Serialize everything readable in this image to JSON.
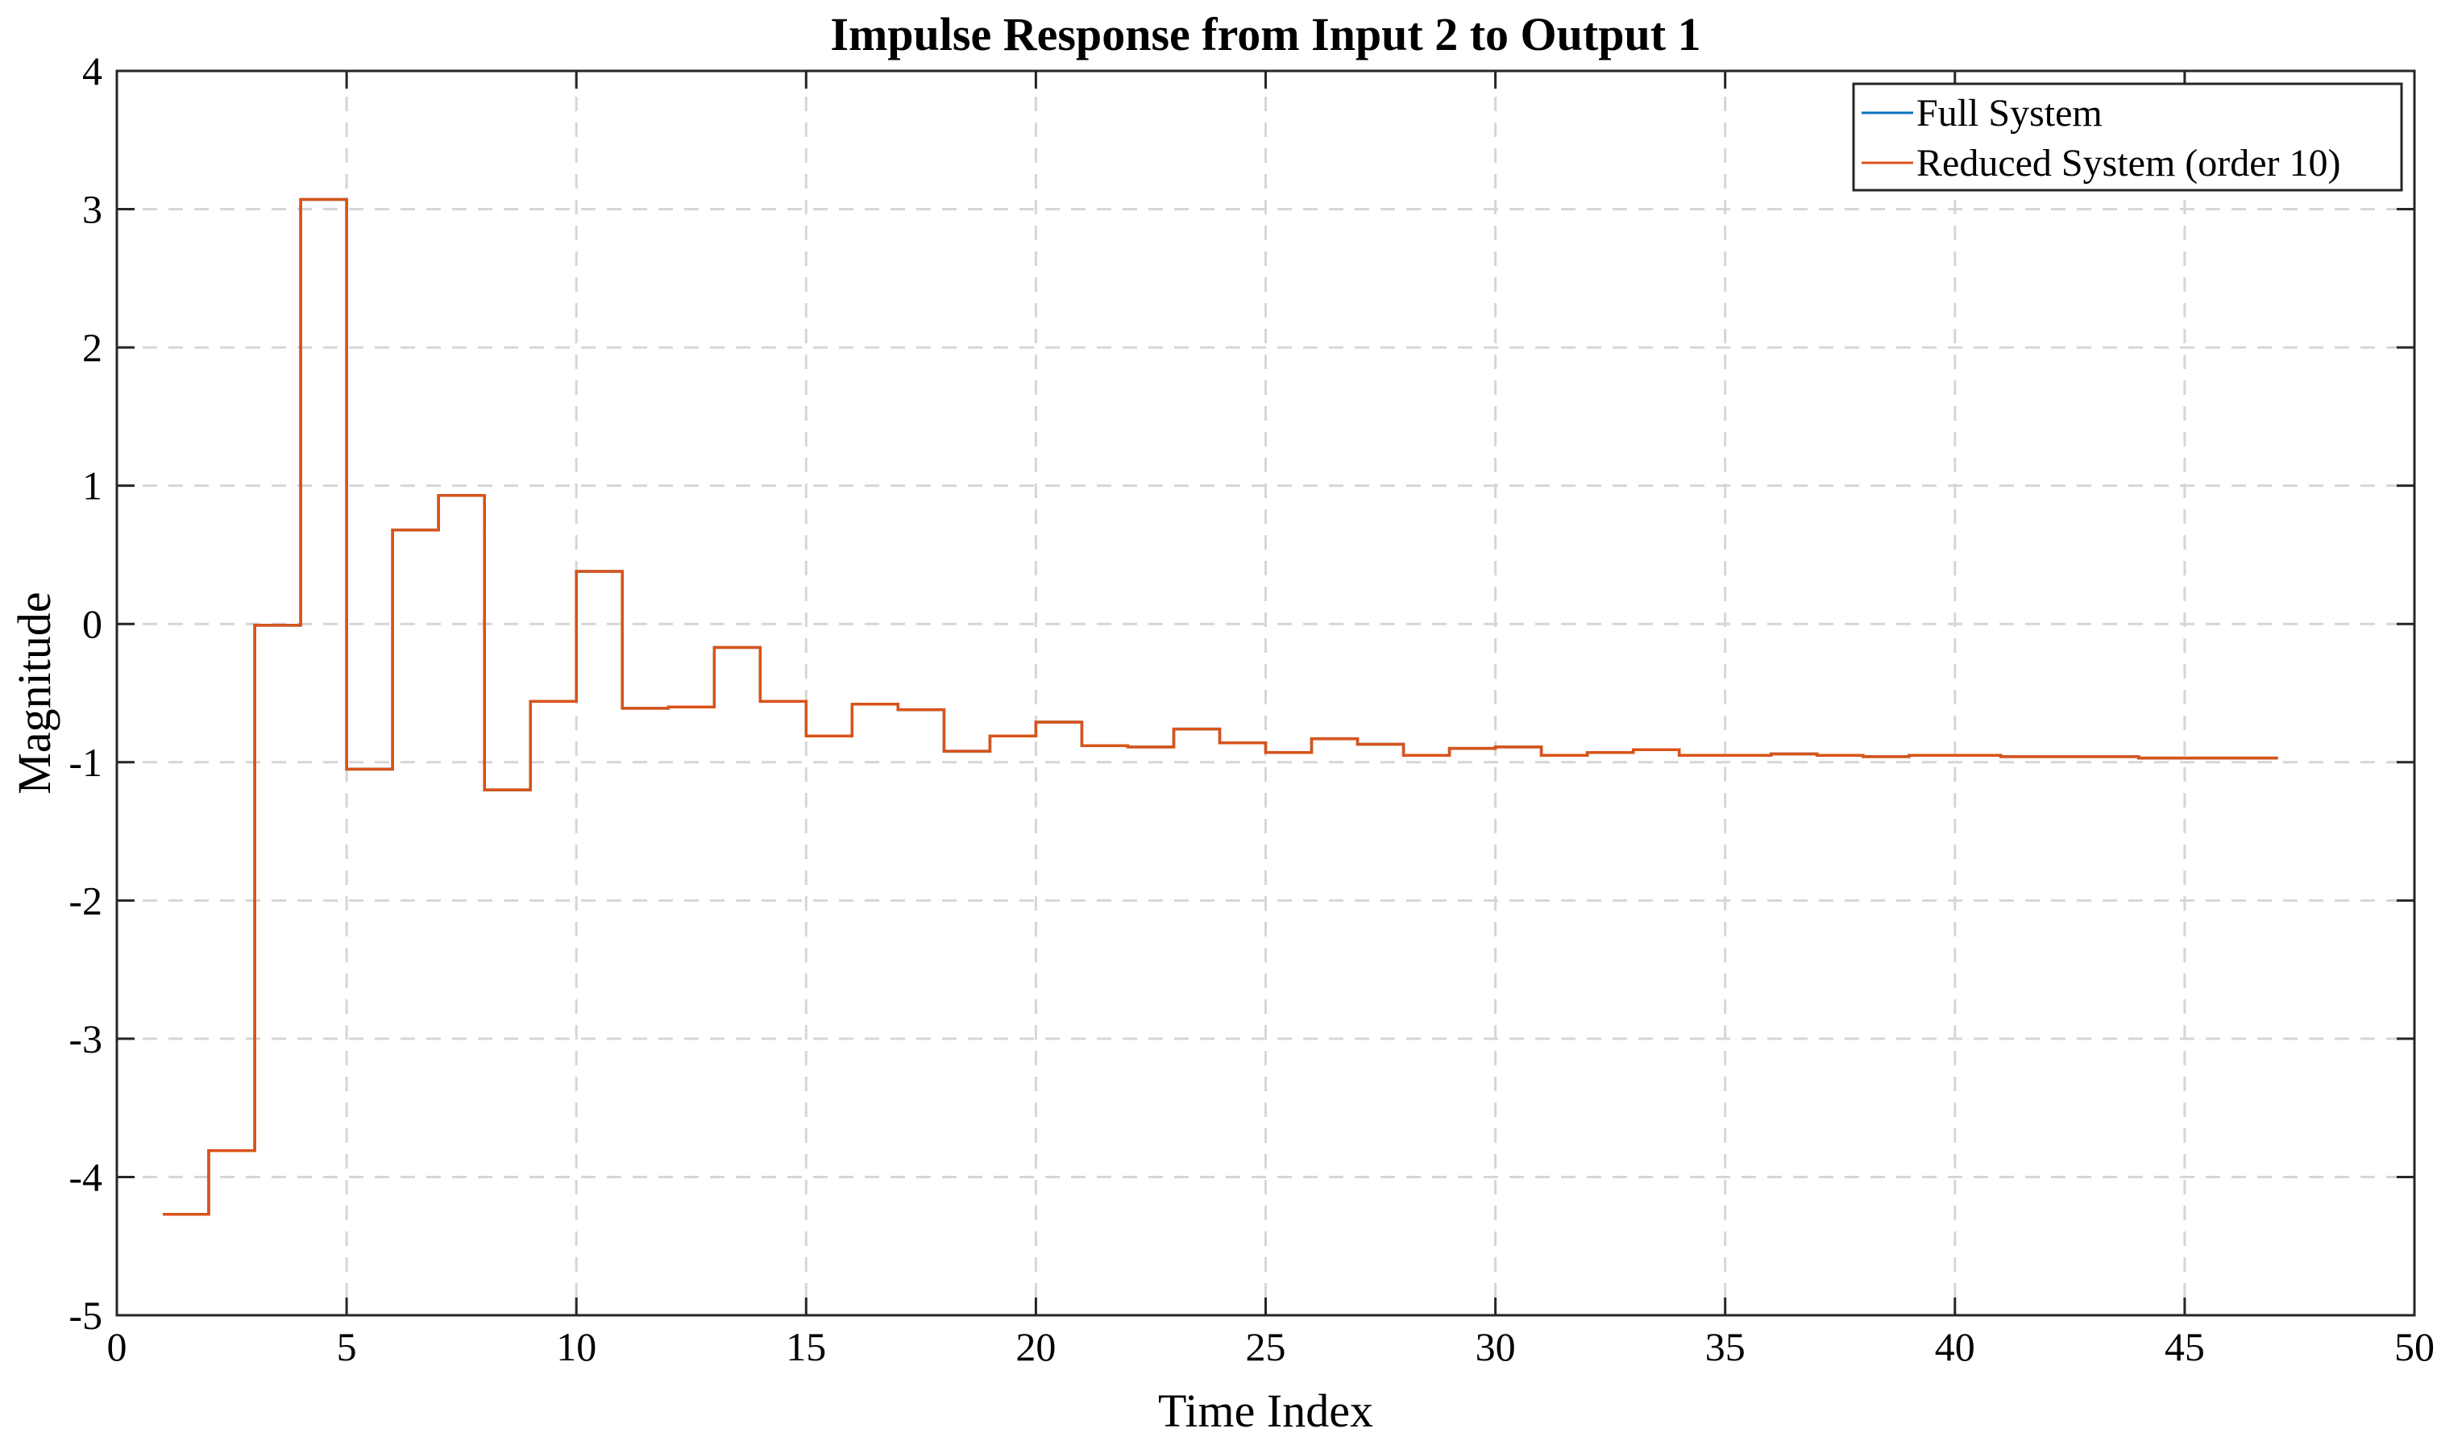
{
  "chart_data": {
    "type": "line",
    "step": true,
    "title": "Impulse Response from Input 2 to Output 1",
    "xlabel": "Time Index",
    "ylabel": "Magnitude",
    "xlim": [
      0,
      50
    ],
    "ylim": [
      -5,
      4
    ],
    "xticks": [
      0,
      5,
      10,
      15,
      20,
      25,
      30,
      35,
      40,
      45,
      50
    ],
    "yticks": [
      -5,
      -4,
      -3,
      -2,
      -1,
      0,
      1,
      2,
      3,
      4
    ],
    "grid": true,
    "legend_position": "top-right",
    "x": [
      1,
      2,
      3,
      4,
      5,
      6,
      7,
      8,
      9,
      10,
      11,
      12,
      13,
      14,
      15,
      16,
      17,
      18,
      19,
      20,
      21,
      22,
      23,
      24,
      25,
      26,
      27,
      28,
      29,
      30,
      31,
      32,
      33,
      34,
      35,
      36,
      37,
      38,
      39,
      40,
      41,
      42,
      43,
      44,
      45,
      46,
      47
    ],
    "x_end": 47,
    "series": [
      {
        "name": "Full System",
        "color": "#0072BD",
        "values": [
          -4.27,
          -3.81,
          -0.01,
          3.07,
          -1.05,
          0.68,
          0.93,
          -1.2,
          -0.56,
          0.38,
          -0.61,
          -0.6,
          -0.17,
          -0.56,
          -0.81,
          -0.58,
          -0.62,
          -0.92,
          -0.81,
          -0.71,
          -0.88,
          -0.89,
          -0.76,
          -0.86,
          -0.93,
          -0.83,
          -0.87,
          -0.95,
          -0.9,
          -0.89,
          -0.95,
          -0.93,
          -0.91,
          -0.95,
          -0.95,
          -0.94,
          -0.95,
          -0.96,
          -0.95,
          -0.95,
          -0.96,
          -0.96,
          -0.96,
          -0.97,
          -0.97,
          -0.97,
          -0.96
        ]
      },
      {
        "name": "Reduced System (order 10)",
        "color": "#D95319",
        "values": [
          -4.27,
          -3.81,
          -0.01,
          3.07,
          -1.05,
          0.68,
          0.93,
          -1.2,
          -0.56,
          0.38,
          -0.61,
          -0.6,
          -0.17,
          -0.56,
          -0.81,
          -0.58,
          -0.62,
          -0.92,
          -0.81,
          -0.71,
          -0.88,
          -0.89,
          -0.76,
          -0.86,
          -0.93,
          -0.83,
          -0.87,
          -0.95,
          -0.9,
          -0.89,
          -0.95,
          -0.93,
          -0.91,
          -0.95,
          -0.95,
          -0.94,
          -0.95,
          -0.96,
          -0.95,
          -0.95,
          -0.96,
          -0.96,
          -0.96,
          -0.97,
          -0.97,
          -0.97,
          -0.96
        ]
      }
    ]
  }
}
